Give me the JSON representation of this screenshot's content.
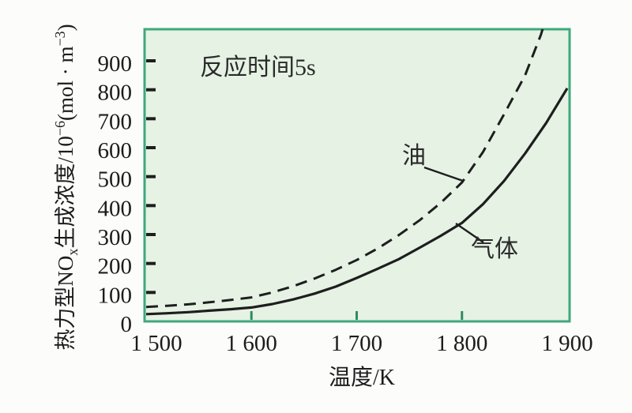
{
  "chart_data": {
    "type": "line",
    "annotation": "反应时间5s",
    "xlabel": "温度/K",
    "ylabel": "热力型NOx生成浓度/10−6(mol · m−3)",
    "ylabel_parts": {
      "p1": "热力型NO",
      "sub": "x",
      "p2": "生成浓度/10",
      "sup1": "−6",
      "p3": "(mol · m",
      "sup2": "−3",
      "p4": ")"
    },
    "xlim": [
      1500,
      1900
    ],
    "ylim": [
      0,
      1009
    ],
    "grid": false,
    "legend_position": "inline-labels-with-leader-lines",
    "x_ticks": [
      {
        "value": 1500,
        "label": "1 500"
      },
      {
        "value": 1600,
        "label": "1 600"
      },
      {
        "value": 1700,
        "label": "1 700"
      },
      {
        "value": 1800,
        "label": "1 800"
      },
      {
        "value": 1900,
        "label": "1 900"
      }
    ],
    "y_ticks": [
      {
        "value": 0,
        "label": "0"
      },
      {
        "value": 100,
        "label": "100"
      },
      {
        "value": 200,
        "label": "200"
      },
      {
        "value": 300,
        "label": "300"
      },
      {
        "value": 400,
        "label": "400"
      },
      {
        "value": 500,
        "label": "500"
      },
      {
        "value": 600,
        "label": "600"
      },
      {
        "value": 700,
        "label": "700"
      },
      {
        "value": 800,
        "label": "800"
      },
      {
        "value": 900,
        "label": "900"
      }
    ],
    "series": [
      {
        "name": "油",
        "line_style": "dashed",
        "x": [
          1500,
          1520,
          1540,
          1560,
          1580,
          1600,
          1620,
          1640,
          1660,
          1680,
          1700,
          1720,
          1740,
          1760,
          1780,
          1800,
          1820,
          1840,
          1860,
          1875,
          1885
        ],
        "y": [
          50,
          54,
          59,
          66,
          74,
          83,
          100,
          122,
          148,
          178,
          212,
          252,
          298,
          350,
          410,
          480,
          585,
          715,
          850,
          990,
          1110
        ]
      },
      {
        "name": "气体",
        "line_style": "solid",
        "x": [
          1500,
          1520,
          1540,
          1560,
          1580,
          1600,
          1620,
          1640,
          1660,
          1680,
          1700,
          1720,
          1740,
          1760,
          1780,
          1800,
          1820,
          1840,
          1860,
          1880,
          1900
        ],
        "y": [
          25,
          28,
          32,
          37,
          42,
          48,
          60,
          76,
          96,
          120,
          150,
          182,
          215,
          255,
          296,
          340,
          405,
          485,
          580,
          685,
          805
        ]
      }
    ],
    "colors": {
      "plot_bg": "#E5F2E4",
      "border": "#3FA87C",
      "curve": "#1E1E1E",
      "x_tick": "#2E8C63"
    }
  }
}
